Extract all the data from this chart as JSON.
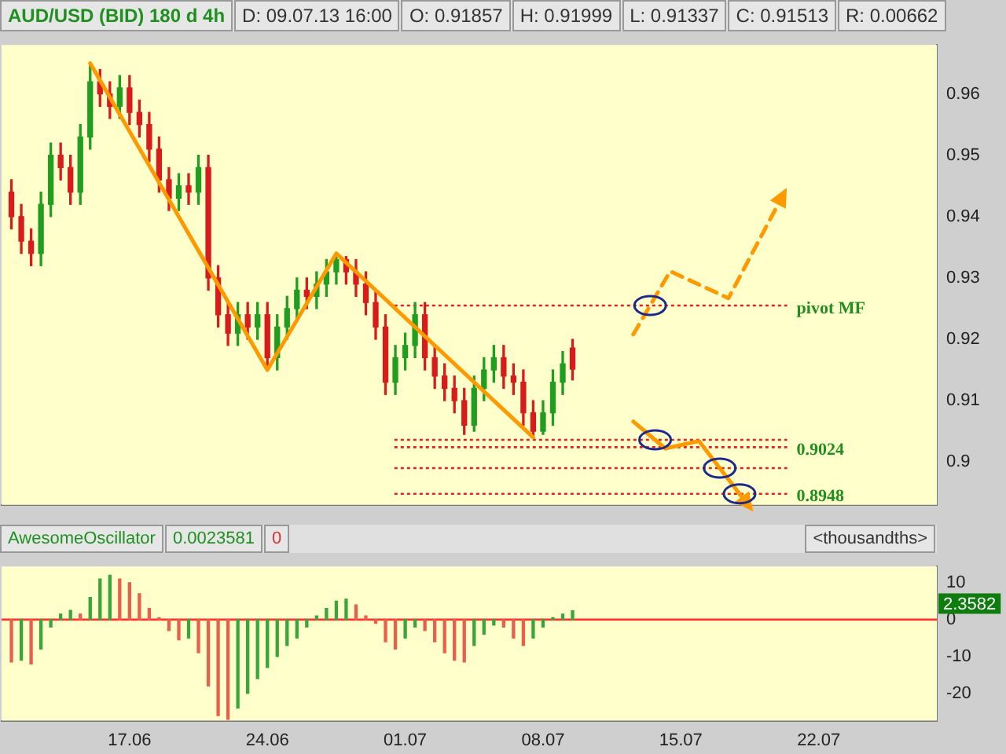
{
  "chart_data": [
    {
      "type": "candlestick",
      "title": "AUD/USD (BID) 180 d 4h",
      "annotations": [
        "D: 09.07.13 16:00",
        "O: 0.91857",
        "H: 0.91999",
        "L: 0.91337",
        "C: 0.91513",
        "R: 0.00662"
      ],
      "x": [
        "--06-11T00:00",
        "--06-11T12:00",
        "--06-12T00:00",
        "--06-12T12:00",
        "--06-13T00:00",
        "--06-13T12:00",
        "--06-14T00:00",
        "--06-14T12:00",
        "--06-15T00:00",
        "--06-15T12:00",
        "--06-16T00:00",
        "--06-16T12:00",
        "--06-17T00:00",
        "--06-17T12:00",
        "--06-18T00:00",
        "--06-18T12:00",
        "--06-19T00:00",
        "--06-19T12:00",
        "--06-20T00:00",
        "--06-20T12:00",
        "--06-21T00:00",
        "--06-21T12:00",
        "--06-22T00:00",
        "--06-22T12:00",
        "--06-23T00:00",
        "--06-23T12:00",
        "--06-24T00:00",
        "--06-24T12:00",
        "--06-25T00:00",
        "--06-25T12:00",
        "--06-26T00:00",
        "--06-26T12:00",
        "--06-27T00:00",
        "--06-27T12:00",
        "--06-28T00:00",
        "--06-28T12:00",
        "--06-29T00:00",
        "--06-29T12:00",
        "--06-30T00:00",
        "--06-30T12:00",
        "--07-01T00:00",
        "--07-01T12:00",
        "--07-02T00:00",
        "--07-02T12:00",
        "--07-03T00:00",
        "--07-03T12:00",
        "--07-04T00:00",
        "--07-04T12:00",
        "--07-05T00:00",
        "--07-05T12:00",
        "--07-06T00:00",
        "--07-06T12:00",
        "--07-07T00:00",
        "--07-07T12:00",
        "--07-08T00:00",
        "--07-08T12:00",
        "--07-09T00:00",
        "--07-09T12:00"
      ],
      "ohlc": [
        [
          0.944,
          0.946,
          0.938,
          0.94
        ],
        [
          0.94,
          0.942,
          0.934,
          0.936
        ],
        [
          0.936,
          0.938,
          0.932,
          0.934
        ],
        [
          0.934,
          0.944,
          0.932,
          0.942
        ],
        [
          0.942,
          0.952,
          0.94,
          0.95
        ],
        [
          0.95,
          0.952,
          0.946,
          0.948
        ],
        [
          0.948,
          0.95,
          0.942,
          0.944
        ],
        [
          0.944,
          0.955,
          0.942,
          0.953
        ],
        [
          0.953,
          0.965,
          0.951,
          0.962
        ],
        [
          0.962,
          0.964,
          0.958,
          0.96
        ],
        [
          0.96,
          0.962,
          0.956,
          0.958
        ],
        [
          0.958,
          0.963,
          0.956,
          0.961
        ],
        [
          0.961,
          0.963,
          0.955,
          0.957
        ],
        [
          0.957,
          0.959,
          0.953,
          0.955
        ],
        [
          0.955,
          0.957,
          0.949,
          0.951
        ],
        [
          0.951,
          0.953,
          0.944,
          0.946
        ],
        [
          0.946,
          0.948,
          0.941,
          0.943
        ],
        [
          0.943,
          0.947,
          0.941,
          0.945
        ],
        [
          0.945,
          0.947,
          0.942,
          0.944
        ],
        [
          0.944,
          0.95,
          0.942,
          0.948
        ],
        [
          0.948,
          0.95,
          0.928,
          0.93
        ],
        [
          0.93,
          0.932,
          0.922,
          0.924
        ],
        [
          0.924,
          0.926,
          0.919,
          0.921
        ],
        [
          0.921,
          0.926,
          0.919,
          0.924
        ],
        [
          0.924,
          0.926,
          0.92,
          0.922
        ],
        [
          0.922,
          0.926,
          0.92,
          0.924
        ],
        [
          0.924,
          0.926,
          0.915,
          0.917
        ],
        [
          0.917,
          0.924,
          0.915,
          0.922
        ],
        [
          0.922,
          0.927,
          0.92,
          0.925
        ],
        [
          0.925,
          0.93,
          0.923,
          0.928
        ],
        [
          0.928,
          0.93,
          0.925,
          0.927
        ],
        [
          0.927,
          0.931,
          0.925,
          0.929
        ],
        [
          0.929,
          0.933,
          0.927,
          0.931
        ],
        [
          0.931,
          0.934,
          0.929,
          0.933
        ],
        [
          0.933,
          0.9335,
          0.929,
          0.931
        ],
        [
          0.931,
          0.933,
          0.927,
          0.929
        ],
        [
          0.929,
          0.931,
          0.924,
          0.926
        ],
        [
          0.926,
          0.928,
          0.92,
          0.922
        ],
        [
          0.922,
          0.924,
          0.911,
          0.913
        ],
        [
          0.913,
          0.919,
          0.911,
          0.917
        ],
        [
          0.917,
          0.921,
          0.915,
          0.919
        ],
        [
          0.919,
          0.926,
          0.917,
          0.924
        ],
        [
          0.924,
          0.926,
          0.915,
          0.917
        ],
        [
          0.917,
          0.919,
          0.912,
          0.914
        ],
        [
          0.914,
          0.916,
          0.91,
          0.912
        ],
        [
          0.912,
          0.914,
          0.908,
          0.91
        ],
        [
          0.91,
          0.912,
          0.9045,
          0.906
        ],
        [
          0.906,
          0.914,
          0.905,
          0.912
        ],
        [
          0.912,
          0.917,
          0.91,
          0.915
        ],
        [
          0.915,
          0.919,
          0.913,
          0.917
        ],
        [
          0.917,
          0.919,
          0.912,
          0.914
        ],
        [
          0.914,
          0.916,
          0.911,
          0.913
        ],
        [
          0.913,
          0.915,
          0.906,
          0.908
        ],
        [
          0.908,
          0.91,
          0.904,
          0.905
        ],
        [
          0.905,
          0.91,
          0.9045,
          0.908
        ],
        [
          0.908,
          0.915,
          0.906,
          0.913
        ],
        [
          0.913,
          0.918,
          0.911,
          0.916
        ],
        [
          0.91857,
          0.91999,
          0.91337,
          0.91513
        ]
      ],
      "series": [
        {
          "type": "line",
          "color": "#ff9900",
          "line_style": "solid",
          "x": [
            "--06-15T00:00",
            "--06-24T00:00",
            "--06-27T12:00",
            "--07-07T12:00"
          ],
          "values": [
            0.965,
            0.915,
            0.934,
            0.904
          ]
        },
        {
          "type": "line",
          "color": "#ff9900",
          "line_style": "dashed",
          "x": [
            "--07-12T14:00",
            "--07-14T11:00",
            "--07-17T10:00",
            "--07-20T02:00"
          ],
          "values": [
            0.9208,
            0.9311,
            0.9267,
            0.9429
          ]
        },
        {
          "type": "line",
          "color": "#ff9900",
          "line_style": "solid",
          "x": [
            "--07-12T14:00",
            "--07-14T05:00",
            "--07-15T22:00",
            "--07-18T07:00"
          ],
          "values": [
            0.9066,
            0.9022,
            0.9034,
            0.8935
          ]
        }
      ],
      "ref_lines": [
        {
          "axis": "y",
          "value": 0.9255,
          "label": "pivot MF",
          "color": "#dd2222",
          "line_style": "dotted"
        },
        {
          "axis": "y",
          "value": 0.9036,
          "color": "#dd2222",
          "line_style": "dotted"
        },
        {
          "axis": "y",
          "value": 0.9024,
          "label": "0.9024",
          "color": "#dd2222",
          "line_style": "dotted"
        },
        {
          "axis": "y",
          "value": 0.899,
          "color": "#dd2222",
          "line_style": "dotted"
        },
        {
          "axis": "y",
          "value": 0.8948,
          "label": "0.8948",
          "color": "#dd2222",
          "line_style": "dotted"
        }
      ],
      "xlim": [
        "--06-10T12:00",
        "--07-28T00:00"
      ],
      "ylim": [
        0.893,
        0.968
      ],
      "yticks": [
        0.9,
        0.91,
        0.92,
        0.93,
        0.94,
        0.95,
        0.96
      ],
      "tick_labels": "y",
      "legend": false
    },
    {
      "type": "bar",
      "title": "AwesomeOscillator",
      "annotations": [
        "0.0023581",
        "0",
        "<thousandths>",
        "2.3582"
      ],
      "x": [
        "--06-11T00:00",
        "--06-11T12:00",
        "--06-12T00:00",
        "--06-12T12:00",
        "--06-13T00:00",
        "--06-13T12:00",
        "--06-14T00:00",
        "--06-14T12:00",
        "--06-15T00:00",
        "--06-15T12:00",
        "--06-16T00:00",
        "--06-16T12:00",
        "--06-17T00:00",
        "--06-17T12:00",
        "--06-18T00:00",
        "--06-18T12:00",
        "--06-19T00:00",
        "--06-19T12:00",
        "--06-20T00:00",
        "--06-20T12:00",
        "--06-21T00:00",
        "--06-21T12:00",
        "--06-22T00:00",
        "--06-22T12:00",
        "--06-23T00:00",
        "--06-23T12:00",
        "--06-24T00:00",
        "--06-24T12:00",
        "--06-25T00:00",
        "--06-25T12:00",
        "--06-26T00:00",
        "--06-26T12:00",
        "--06-27T00:00",
        "--06-27T12:00",
        "--06-28T00:00",
        "--06-28T12:00",
        "--06-29T00:00",
        "--06-29T12:00",
        "--06-30T00:00",
        "--06-30T12:00",
        "--07-01T00:00",
        "--07-01T12:00",
        "--07-02T00:00",
        "--07-02T12:00",
        "--07-03T00:00",
        "--07-03T12:00",
        "--07-04T00:00",
        "--07-04T12:00",
        "--07-05T00:00",
        "--07-05T12:00",
        "--07-06T00:00",
        "--07-06T12:00",
        "--07-07T00:00",
        "--07-07T12:00",
        "--07-08T00:00",
        "--07-08T12:00",
        "--07-09T00:00",
        "--07-09T12:00"
      ],
      "values": [
        -11.5,
        -11,
        -12,
        -8,
        -2,
        1.5,
        2.5,
        1.5,
        6,
        11,
        12,
        11,
        10,
        7,
        3,
        0.5,
        -3,
        -5.5,
        -5,
        -9,
        -18,
        -26,
        -27,
        -24,
        -20,
        -16,
        -13,
        -10,
        -7,
        -5,
        -2,
        1,
        3,
        5,
        5.5,
        4,
        1,
        -1,
        -6,
        -8,
        -5,
        -2,
        -3,
        -6,
        -9,
        -11,
        -11.5,
        -7,
        -4,
        -1.5,
        -2,
        -5,
        -7,
        -5,
        -2,
        0.5,
        1.5,
        2.4
      ],
      "colors": [
        "#e8604c",
        "#3aa63a",
        "#e8604c",
        "#3aa63a",
        "#3aa63a",
        "#3aa63a",
        "#3aa63a",
        "#e8604c",
        "#3aa63a",
        "#3aa63a",
        "#3aa63a",
        "#e8604c",
        "#e8604c",
        "#e8604c",
        "#e8604c",
        "#e8604c",
        "#e8604c",
        "#e8604c",
        "#3aa63a",
        "#e8604c",
        "#e8604c",
        "#e8604c",
        "#e8604c",
        "#3aa63a",
        "#3aa63a",
        "#3aa63a",
        "#3aa63a",
        "#3aa63a",
        "#3aa63a",
        "#3aa63a",
        "#3aa63a",
        "#3aa63a",
        "#3aa63a",
        "#3aa63a",
        "#3aa63a",
        "#e8604c",
        "#e8604c",
        "#e8604c",
        "#e8604c",
        "#e8604c",
        "#3aa63a",
        "#3aa63a",
        "#e8604c",
        "#e8604c",
        "#e8604c",
        "#e8604c",
        "#e8604c",
        "#3aa63a",
        "#3aa63a",
        "#3aa63a",
        "#e8604c",
        "#e8604c",
        "#e8604c",
        "#3aa63a",
        "#3aa63a",
        "#3aa63a",
        "#3aa63a",
        "#3aa63a"
      ],
      "ref_lines": [
        {
          "axis": "y",
          "value": 0,
          "color": "#ff3333",
          "line_style": "solid"
        }
      ],
      "xlim": [
        "--06-10T12:00",
        "--07-28T00:00"
      ],
      "xticks": [
        {
          "value": "--06-17",
          "label": "17.06"
        },
        {
          "value": "--06-24",
          "label": "24.06"
        },
        {
          "value": "--07-01",
          "label": "01.07"
        },
        {
          "value": "--07-08",
          "label": "08.07"
        },
        {
          "value": "--07-15",
          "label": "15.07"
        },
        {
          "value": "--07-22",
          "label": "22.07"
        }
      ],
      "ylim": [
        -27.4,
        14.4
      ],
      "yticks": [
        -20,
        -10,
        0,
        10
      ],
      "legend": false
    }
  ]
}
